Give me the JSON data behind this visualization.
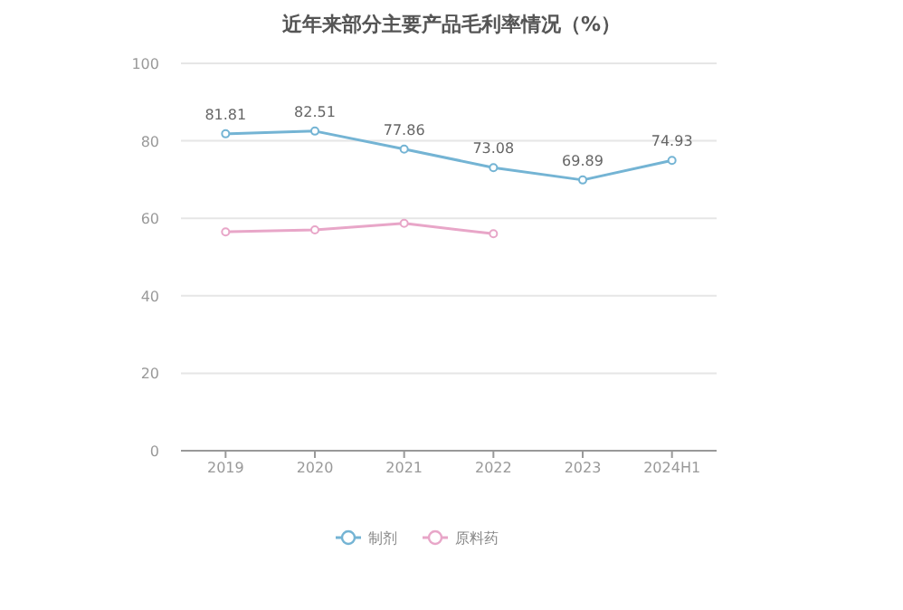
{
  "chart_data": {
    "type": "line",
    "title": "近年来部分主要产品毛利率情况（%）",
    "categories": [
      "2019",
      "2020",
      "2021",
      "2022",
      "2023",
      "2024H1"
    ],
    "series": [
      {
        "name": "制剂",
        "color": "#74b4d4",
        "values": [
          81.81,
          82.51,
          77.86,
          73.08,
          69.89,
          74.93
        ],
        "value_labels": [
          "81.81",
          "82.51",
          "77.86",
          "73.08",
          "69.89",
          "74.93"
        ]
      },
      {
        "name": "原料药",
        "color": "#e8a6c8",
        "values": [
          56.5,
          57,
          58.7,
          56,
          null,
          null
        ]
      }
    ],
    "ylim": [
      0,
      100
    ],
    "yticks": [
      0,
      20,
      40,
      60,
      80,
      100
    ],
    "grid": "y",
    "legend": "bottom",
    "marker": "circle"
  }
}
